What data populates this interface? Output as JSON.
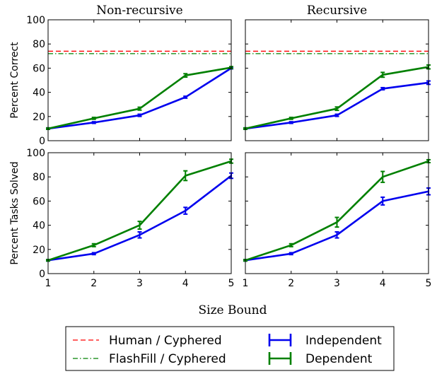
{
  "chart_data": {
    "type": "line",
    "xlabel": "Size Bound",
    "x": [
      1,
      2,
      3,
      4,
      5
    ],
    "xlim": [
      1,
      5
    ],
    "ylim": [
      0,
      100
    ],
    "yticks": [
      0,
      20,
      40,
      60,
      80,
      100
    ],
    "column_titles": [
      "Non-recursive",
      "Recursive"
    ],
    "row_ylabels": [
      "Percent Correct",
      "Percent Tasks Solved"
    ],
    "colors": {
      "Independent": "#0000ee",
      "Dependent": "#008000",
      "human": "#ff0000",
      "flashfill": "#008000"
    },
    "legend": {
      "position": "bottom",
      "reference_lines": [
        "Human / Cyphered",
        "FlashFill / Cyphered"
      ],
      "series": [
        "Independent",
        "Dependent"
      ]
    },
    "panels": [
      {
        "row": 0,
        "col": 0,
        "reference_lines": {
          "Human / Cyphered": 74,
          "FlashFill / Cyphered": 72
        },
        "series": [
          {
            "name": "Independent",
            "values": [
              10,
              15,
              21,
              36,
              60
            ],
            "errors": [
              0.6,
              0.7,
              0.9,
              0.8,
              0.6
            ]
          },
          {
            "name": "Dependent",
            "values": [
              10,
              18.5,
              26.5,
              54,
              60.5
            ],
            "errors": [
              0.6,
              0.8,
              1.2,
              1.4,
              0.8
            ]
          }
        ]
      },
      {
        "row": 0,
        "col": 1,
        "reference_lines": {
          "Human / Cyphered": 74,
          "FlashFill / Cyphered": 72
        },
        "series": [
          {
            "name": "Independent",
            "values": [
              10,
              15,
              21,
              43,
              48
            ],
            "errors": [
              0.6,
              0.7,
              0.9,
              0.9,
              1.4
            ]
          },
          {
            "name": "Dependent",
            "values": [
              10,
              18.5,
              26.5,
              54.5,
              61
            ],
            "errors": [
              0.6,
              0.8,
              1.4,
              2.0,
              1.6
            ]
          }
        ]
      },
      {
        "row": 1,
        "col": 0,
        "series": [
          {
            "name": "Independent",
            "values": [
              11,
              16.5,
              32,
              52,
              81
            ],
            "errors": [
              0.6,
              0.8,
              2.5,
              2.8,
              2.2
            ]
          },
          {
            "name": "Dependent",
            "values": [
              11,
              23.5,
              40,
              81,
              93
            ],
            "errors": [
              0.6,
              1.2,
              3.2,
              4.0,
              1.6
            ]
          }
        ]
      },
      {
        "row": 1,
        "col": 1,
        "series": [
          {
            "name": "Independent",
            "values": [
              11,
              16.5,
              32,
              60,
              68
            ],
            "errors": [
              0.6,
              0.8,
              2.5,
              3.2,
              2.8
            ]
          },
          {
            "name": "Dependent",
            "values": [
              11,
              23.5,
              42.5,
              80,
              93
            ],
            "errors": [
              0.6,
              1.2,
              4.0,
              4.5,
              1.2
            ]
          }
        ]
      }
    ]
  }
}
